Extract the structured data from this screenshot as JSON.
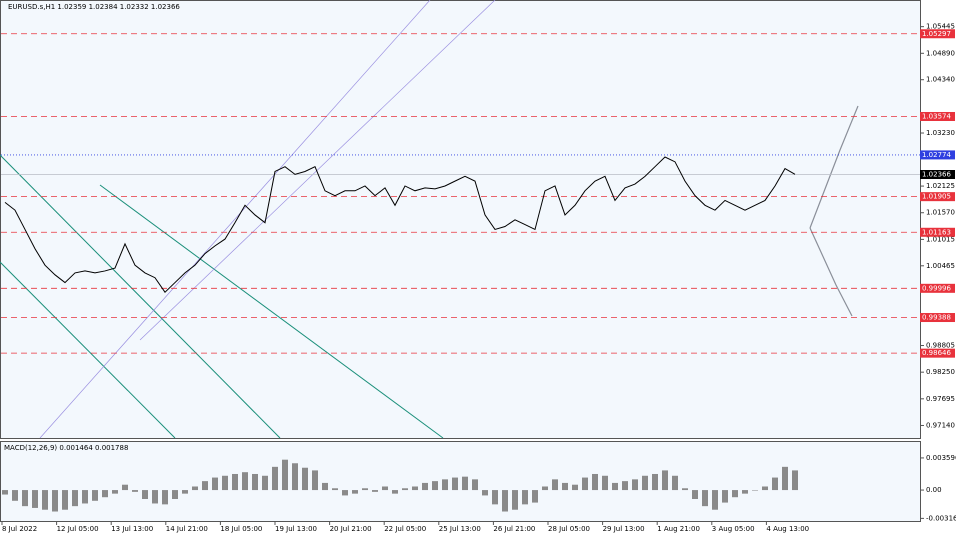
{
  "chart_data": [
    {
      "type": "line",
      "title": "EURUSD.s,H1 1.02359 1.02384 1.02332 1.02366",
      "ylim": [
        0.969,
        1.0575
      ],
      "yticks": [
        1.05445,
        {
          "value": 1.0489,
          "label": "1.04890"
        },
        {
          "value": 1.0434,
          "label": "1.04340"
        },
        {
          "value": 1.0323,
          "label": "1.03230"
        },
        1.02125,
        {
          "value": 1.0157,
          "label": "1.01570"
        },
        1.01015,
        1.00465,
        0.98805,
        {
          "value": 0.9825,
          "label": "0.98250"
        },
        0.97695,
        {
          "value": 0.9714,
          "label": "0.97140"
        }
      ],
      "levels": [
        {
          "value": 1.05297,
          "color": "#e8323c",
          "style": "dashed"
        },
        {
          "value": 1.03574,
          "color": "#e8323c",
          "style": "dashed"
        },
        {
          "value": 1.02774,
          "color": "#2f3fe0",
          "style": "dotted"
        },
        {
          "value": 1.02366,
          "color": "#000000",
          "style": "solid"
        },
        {
          "value": 1.01905,
          "color": "#e8323c",
          "style": "dashed"
        },
        {
          "value": 1.01163,
          "color": "#e8323c",
          "style": "dashed"
        },
        {
          "value": 0.99996,
          "color": "#e8323c",
          "style": "dashed"
        },
        {
          "value": 0.99388,
          "color": "#e8323c",
          "style": "dashed"
        },
        {
          "value": 0.98646,
          "color": "#e8323c",
          "style": "dashed"
        }
      ],
      "x_labels": [
        "8 Jul 2022",
        "12 Jul 05:00",
        "13 Jul 13:00",
        "14 Jul 21:00",
        "18 Jul 05:00",
        "19 Jul 13:00",
        "20 Jul 21:00",
        "22 Jul 05:00",
        "25 Jul 13:00",
        "26 Jul 21:00",
        "28 Jul 05:00",
        "29 Jul 13:00",
        "1 Aug 21:00",
        "3 Aug 05:00",
        "4 Aug 13:00"
      ],
      "series": [
        {
          "color": "#000000",
          "values": [
            1.01785,
            1.01624,
            1.01222,
            1.0082,
            1.00478,
            1.00277,
            1.00116,
            1.00317,
            1.00358,
            1.00317,
            1.00358,
            1.00418,
            1.00921,
            1.00478,
            1.00317,
            1.00217,
            0.99915,
            1.00116,
            1.00317,
            1.00478,
            1.00719,
            1.0088,
            1.01021,
            1.01363,
            1.01725,
            1.01524,
            1.01363,
            1.02429,
            1.02529,
            1.02369,
            1.02429,
            1.02529,
            1.02027,
            1.01926,
            1.02027,
            1.02027,
            1.02127,
            1.01926,
            1.02087,
            1.01725,
            1.02127,
            1.02027,
            1.02087,
            1.02067,
            1.02127,
            1.02228,
            1.02328,
            1.02228,
            1.01524,
            1.01222,
            1.01283,
            1.01423,
            1.01323,
            1.01222,
            1.02027,
            1.02127,
            1.01524,
            1.01725,
            1.02027,
            1.02228,
            1.02328,
            1.01826,
            1.02087,
            1.02167,
            1.02328,
            1.02529,
            1.0273,
            1.0263,
            1.02228,
            1.01926,
            1.01725,
            1.01624,
            1.01826,
            1.01725,
            1.01624,
            1.01725,
            1.01826,
            1.02127,
            1.02489,
            1.02369
          ]
        }
      ]
    },
    {
      "type": "bar",
      "title": "MACD(12,26,9) 0.001464 0.001788",
      "ylim": [
        -0.00335,
        0.00426
      ],
      "yticks": [
        0.003596,
        {
          "value": 0,
          "label": "0.00"
        },
        -0.003168
      ],
      "color": "#8a8a8a",
      "values": [
        -0.0005,
        -0.0012,
        -0.0018,
        -0.002,
        -0.0022,
        -0.0024,
        -0.0022,
        -0.0018,
        -0.0015,
        -0.0012,
        -0.0008,
        -0.0004,
        0.0006,
        -0.0002,
        -0.001,
        -0.0015,
        -0.0016,
        -0.001,
        -0.0004,
        0.0004,
        0.001,
        0.0014,
        0.0016,
        0.0018,
        0.002,
        0.0018,
        0.0016,
        0.0026,
        0.0034,
        0.003,
        0.0025,
        0.0022,
        0.0008,
        0.0002,
        -0.0006,
        -0.0004,
        0.0002,
        -0.0002,
        0.0004,
        -0.0004,
        0.0002,
        0.0004,
        0.0008,
        0.001,
        0.0012,
        0.0014,
        0.0015,
        0.0012,
        -0.0006,
        -0.0016,
        -0.0024,
        -0.0022,
        -0.0016,
        -0.0014,
        0.0004,
        0.0012,
        0.0008,
        0.0006,
        0.0014,
        0.0018,
        0.0016,
        0.0008,
        0.001,
        0.0012,
        0.0016,
        0.0018,
        0.0022,
        0.0016,
        0.0002,
        -0.001,
        -0.0018,
        -0.0022,
        -0.0014,
        -0.0008,
        -0.0004,
        0,
        0.0004,
        0.0014,
        0.0026,
        0.0022
      ]
    }
  ]
}
